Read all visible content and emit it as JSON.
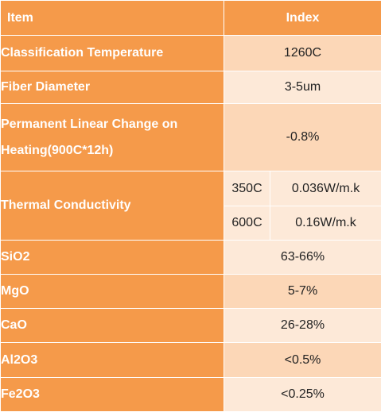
{
  "header": {
    "item": "Item",
    "index": "Index"
  },
  "rows": [
    {
      "label": "Classification Temperature",
      "value": "1260C"
    },
    {
      "label": "Fiber Diameter",
      "value": "3-5um"
    },
    {
      "label_line1": "Permanent Linear Change on",
      "label_line2": "Heating(900C*12h)",
      "value": "-0.8%"
    },
    {
      "label": "Thermal Conductivity",
      "sub": [
        {
          "temp": "350C",
          "value": "0.036W/m.k"
        },
        {
          "temp": "600C",
          "value": "0.16W/m.k"
        }
      ]
    },
    {
      "label": "SiO2",
      "value": "63-66%"
    },
    {
      "label": "MgO",
      "value": "5-7%"
    },
    {
      "label": "CaO",
      "value": "26-28%"
    },
    {
      "label": "Al2O3",
      "value": "<0.5%"
    },
    {
      "label": "Fe2O3",
      "value": "<0.25%"
    }
  ],
  "colors": {
    "header_bg": "#f59a4a",
    "value_dark": "#fcd7b7",
    "value_light": "#fde9d8"
  }
}
